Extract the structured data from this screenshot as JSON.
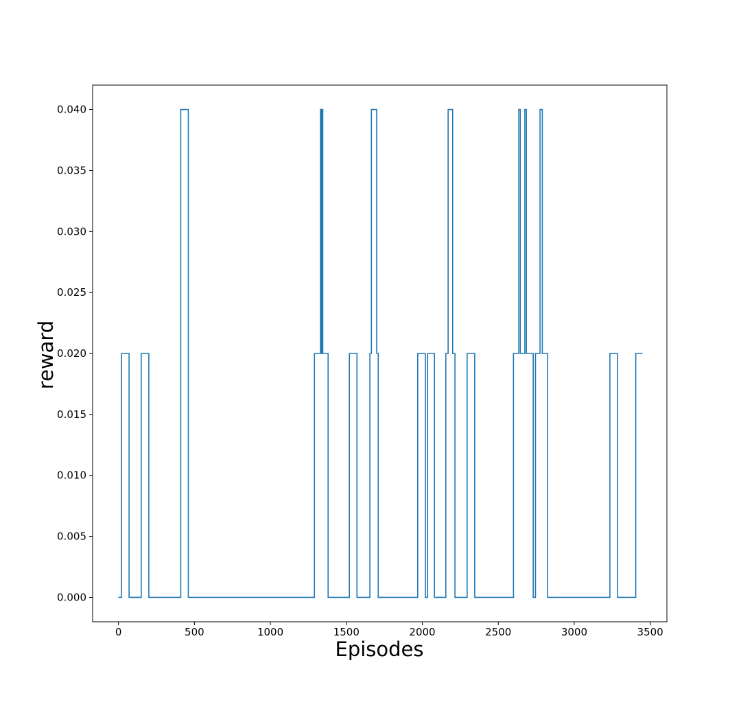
{
  "chart_data": {
    "type": "line",
    "drawstyle": "steps",
    "title": "",
    "xlabel": "Episodes",
    "ylabel": "reward",
    "xlim": [
      -170,
      3610
    ],
    "ylim": [
      -0.002,
      0.042
    ],
    "x_ticks": [
      0,
      500,
      1000,
      1500,
      2000,
      2500,
      3000,
      3500
    ],
    "x_tick_labels": [
      "0",
      "500",
      "1000",
      "1500",
      "2000",
      "2500",
      "3000",
      "3500"
    ],
    "y_ticks": [
      0.0,
      0.005,
      0.01,
      0.015,
      0.02,
      0.025,
      0.03,
      0.035,
      0.04
    ],
    "y_tick_labels": [
      "0.000",
      "0.005",
      "0.010",
      "0.015",
      "0.020",
      "0.025",
      "0.030",
      "0.035",
      "0.040"
    ],
    "grid": false,
    "legend": "none",
    "series": [
      {
        "color": "#1f77b4",
        "segments": [
          [
            0,
            0.0
          ],
          [
            20,
            0.02
          ],
          [
            70,
            0.0
          ],
          [
            150,
            0.02
          ],
          [
            200,
            0.0
          ],
          [
            410,
            0.04
          ],
          [
            460,
            0.0
          ],
          [
            1290,
            0.02
          ],
          [
            1330,
            0.04
          ],
          [
            1335,
            0.02
          ],
          [
            1340,
            0.04
          ],
          [
            1345,
            0.02
          ],
          [
            1380,
            0.0
          ],
          [
            1520,
            0.02
          ],
          [
            1570,
            0.0
          ],
          [
            1655,
            0.02
          ],
          [
            1665,
            0.04
          ],
          [
            1700,
            0.02
          ],
          [
            1710,
            0.0
          ],
          [
            1970,
            0.02
          ],
          [
            2020,
            0.0
          ],
          [
            2035,
            0.02
          ],
          [
            2080,
            0.0
          ],
          [
            2155,
            0.02
          ],
          [
            2170,
            0.04
          ],
          [
            2200,
            0.02
          ],
          [
            2215,
            0.0
          ],
          [
            2295,
            0.02
          ],
          [
            2345,
            0.0
          ],
          [
            2600,
            0.02
          ],
          [
            2635,
            0.04
          ],
          [
            2645,
            0.02
          ],
          [
            2675,
            0.04
          ],
          [
            2685,
            0.02
          ],
          [
            2730,
            0.0
          ],
          [
            2745,
            0.02
          ],
          [
            2775,
            0.04
          ],
          [
            2790,
            0.02
          ],
          [
            2825,
            0.0
          ],
          [
            3235,
            0.02
          ],
          [
            3285,
            0.0
          ],
          [
            3405,
            0.02
          ]
        ],
        "x_end": 3450
      }
    ]
  }
}
